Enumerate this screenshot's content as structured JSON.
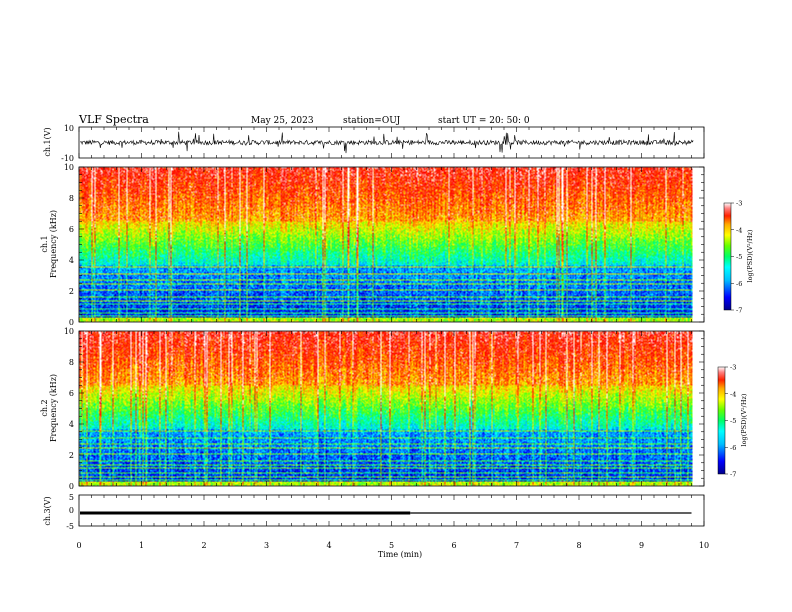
{
  "header": {
    "title": "VLF Spectra",
    "date": "May 25, 2023",
    "station": "station=OUJ",
    "start": "start  UT =   20: 50: 0"
  },
  "chart_data": [
    {
      "type": "line",
      "panel": "ch1-waveform",
      "ylabel": "ch.1(V)",
      "ylim": [
        -10,
        10
      ],
      "yticks": [
        "10",
        "-10"
      ],
      "baseline": 0,
      "trace_color": "#000000"
    },
    {
      "type": "heatmap",
      "panel": "ch1-spectrogram",
      "ylabel_top": "ch.1",
      "ylabel": "Frequency  (kHz)",
      "ylim": [
        0,
        10
      ],
      "yticks": [
        "0",
        "2",
        "4",
        "6",
        "8",
        "10"
      ],
      "colorbar": {
        "label": "log(PSD)(V²/Hz)",
        "ticks": [
          "-3",
          "-4",
          "-5",
          "-6",
          "-7"
        ],
        "range": [
          -7,
          -3
        ]
      }
    },
    {
      "type": "heatmap",
      "panel": "ch2-spectrogram",
      "ylabel_top": "ch.2",
      "ylabel": "Frequency  (kHz)",
      "ylim": [
        0,
        10
      ],
      "yticks": [
        "0",
        "2",
        "4",
        "6",
        "8",
        "10"
      ],
      "colorbar": {
        "label": "log(PSD)(V²/Hz)",
        "ticks": [
          "-3",
          "-4",
          "-5",
          "-6",
          "-7"
        ],
        "range": [
          -7,
          -3
        ]
      }
    },
    {
      "type": "line",
      "panel": "ch3-waveform",
      "ylabel": "ch.3(V)",
      "ylim": [
        -5,
        5
      ],
      "yticks": [
        "5",
        "0",
        "-5"
      ],
      "series": [
        {
          "x": [
            0,
            5.3
          ],
          "y": [
            -0.8,
            -0.8
          ],
          "weight": "thick"
        },
        {
          "x": [
            5.3,
            9.8
          ],
          "y": [
            -0.8,
            -0.8
          ],
          "weight": "thin"
        }
      ]
    }
  ],
  "xaxis": {
    "label": "Time  (min)",
    "xlim": [
      0,
      10
    ],
    "ticks": [
      "0",
      "1",
      "2",
      "3",
      "4",
      "5",
      "6",
      "7",
      "8",
      "9",
      "10"
    ],
    "data_end": 9.83
  },
  "colors": {
    "colormap": [
      "#00008b",
      "#0000ff",
      "#00aaff",
      "#00ffff",
      "#00ff66",
      "#66ff00",
      "#ffff00",
      "#ffaa00",
      "#ff2a00",
      "#ff0000",
      "#ffffff"
    ]
  }
}
